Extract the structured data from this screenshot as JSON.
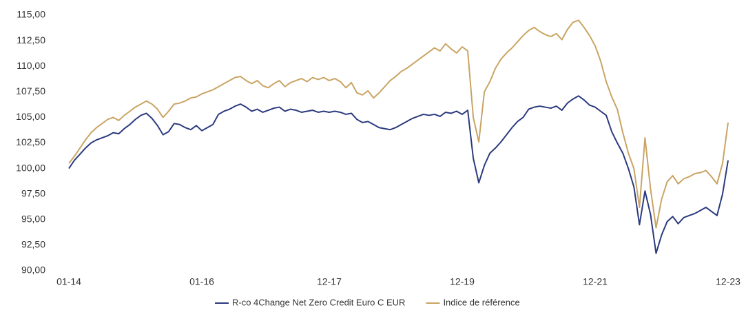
{
  "chart_data": {
    "type": "line",
    "categories": [
      "01-14",
      null,
      null,
      null,
      null,
      null,
      null,
      null,
      null,
      null,
      null,
      null,
      null,
      null,
      null,
      null,
      null,
      null,
      null,
      null,
      null,
      null,
      null,
      null,
      "01-16",
      null,
      null,
      null,
      null,
      null,
      null,
      null,
      null,
      null,
      null,
      null,
      null,
      null,
      null,
      null,
      null,
      null,
      null,
      null,
      null,
      null,
      null,
      "12-17",
      null,
      null,
      null,
      null,
      null,
      null,
      null,
      null,
      null,
      null,
      null,
      null,
      null,
      null,
      null,
      null,
      null,
      null,
      null,
      null,
      null,
      null,
      null,
      "12-19",
      null,
      null,
      null,
      null,
      null,
      null,
      null,
      null,
      null,
      null,
      null,
      null,
      null,
      null,
      null,
      null,
      null,
      null,
      null,
      null,
      null,
      null,
      null,
      "12-21",
      null,
      null,
      null,
      null,
      null,
      null,
      null,
      null,
      null,
      null,
      null,
      null,
      null,
      null,
      null,
      null,
      null,
      null,
      null,
      null,
      null,
      null,
      null,
      "12-23"
    ],
    "series": [
      {
        "name": "R-co 4Change Net Zero Credit Euro C EUR",
        "color": "#2b3a7e",
        "values": [
          100.0,
          100.8,
          101.4,
          102.0,
          102.5,
          102.8,
          103.0,
          103.2,
          103.5,
          103.4,
          103.9,
          104.3,
          104.8,
          105.2,
          105.4,
          104.9,
          104.2,
          103.3,
          103.6,
          104.4,
          104.3,
          104.0,
          103.8,
          104.2,
          103.7,
          104.0,
          104.3,
          105.3,
          105.6,
          105.8,
          106.1,
          106.3,
          106.0,
          105.6,
          105.8,
          105.5,
          105.7,
          105.9,
          106.0,
          105.6,
          105.8,
          105.7,
          105.5,
          105.6,
          105.7,
          105.5,
          105.6,
          105.5,
          105.6,
          105.5,
          105.3,
          105.4,
          104.8,
          104.5,
          104.6,
          104.3,
          104.0,
          103.9,
          103.8,
          104.0,
          104.3,
          104.6,
          104.9,
          105.1,
          105.3,
          105.2,
          105.3,
          105.1,
          105.5,
          105.4,
          105.6,
          105.3,
          105.7,
          101.0,
          98.6,
          100.3,
          101.5,
          102.0,
          102.6,
          103.3,
          104.0,
          104.6,
          105.0,
          105.8,
          106.0,
          106.1,
          106.0,
          105.9,
          106.1,
          105.7,
          106.4,
          106.8,
          107.1,
          106.7,
          106.2,
          106.0,
          105.6,
          105.2,
          103.6,
          102.5,
          101.5,
          100.0,
          98.2,
          94.5,
          97.8,
          95.5,
          91.7,
          93.5,
          94.8,
          95.3,
          94.6,
          95.2,
          95.4,
          95.6,
          95.9,
          96.2,
          95.8,
          95.4,
          97.5,
          100.8
        ]
      },
      {
        "name": "Indice de référence",
        "color": "#c9a463",
        "values": [
          100.5,
          101.2,
          102.0,
          102.8,
          103.5,
          104.0,
          104.4,
          104.8,
          105.0,
          104.7,
          105.2,
          105.6,
          106.0,
          106.3,
          106.6,
          106.3,
          105.8,
          105.0,
          105.6,
          106.3,
          106.4,
          106.6,
          106.9,
          107.0,
          107.3,
          107.5,
          107.7,
          108.0,
          108.3,
          108.6,
          108.9,
          109.0,
          108.6,
          108.3,
          108.6,
          108.1,
          107.9,
          108.3,
          108.6,
          108.0,
          108.4,
          108.6,
          108.8,
          108.5,
          108.9,
          108.7,
          108.9,
          108.6,
          108.8,
          108.5,
          107.9,
          108.4,
          107.4,
          107.2,
          107.6,
          106.9,
          107.4,
          108.0,
          108.6,
          109.0,
          109.5,
          109.8,
          110.2,
          110.6,
          111.0,
          111.4,
          111.8,
          111.5,
          112.2,
          111.7,
          111.3,
          111.9,
          111.5,
          105.0,
          102.6,
          107.5,
          108.5,
          109.8,
          110.7,
          111.3,
          111.8,
          112.4,
          113.0,
          113.5,
          113.8,
          113.4,
          113.1,
          112.9,
          113.2,
          112.6,
          113.6,
          114.3,
          114.5,
          113.8,
          113.0,
          112.0,
          110.5,
          108.5,
          107.0,
          105.8,
          103.5,
          101.5,
          100.0,
          96.2,
          103.0,
          98.0,
          94.2,
          97.0,
          98.7,
          99.3,
          98.5,
          99.0,
          99.2,
          99.5,
          99.6,
          99.8,
          99.2,
          98.5,
          100.5,
          104.5
        ]
      }
    ],
    "ylim": [
      90,
      115
    ],
    "yticks": [
      {
        "value": 90,
        "label": "90,00"
      },
      {
        "value": 92.5,
        "label": "92,50"
      },
      {
        "value": 95,
        "label": "95,00"
      },
      {
        "value": 97.5,
        "label": "97,50"
      },
      {
        "value": 100,
        "label": "100,00"
      },
      {
        "value": 102.5,
        "label": "102,50"
      },
      {
        "value": 105,
        "label": "105,00"
      },
      {
        "value": 107.5,
        "label": "107,50"
      },
      {
        "value": 110,
        "label": "110,00"
      },
      {
        "value": 112.5,
        "label": "112,50"
      },
      {
        "value": 115,
        "label": "115,00"
      }
    ],
    "grid": false,
    "legend": "bottom"
  }
}
